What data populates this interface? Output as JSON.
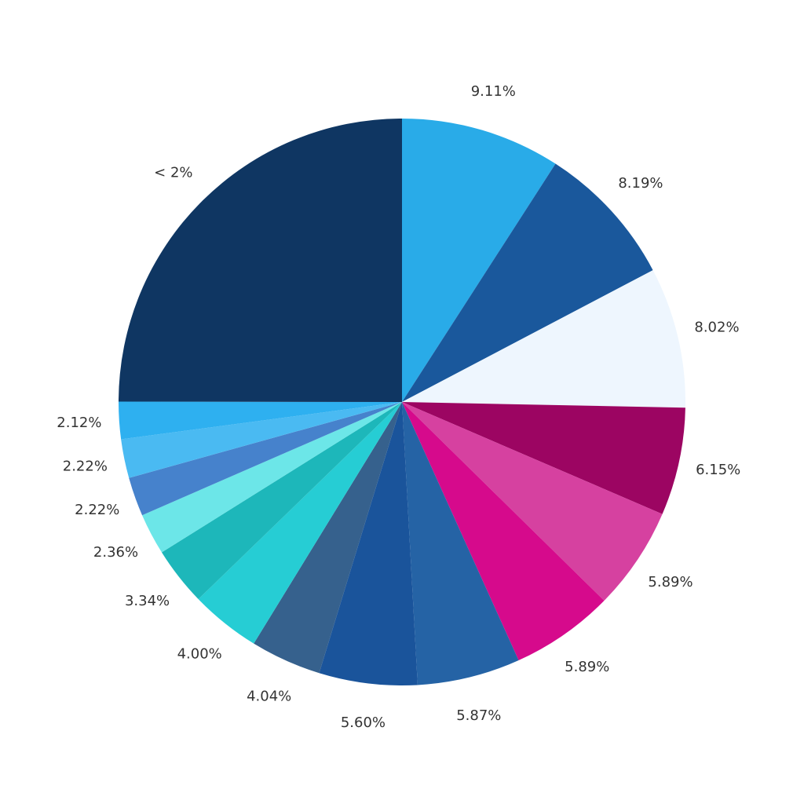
{
  "chart_data": {
    "type": "pie",
    "categories": [
      null,
      null,
      null,
      null,
      null,
      null,
      null,
      null,
      null,
      null,
      null,
      null,
      null,
      null,
      null,
      "< 2%"
    ],
    "values": [
      9.11,
      8.19,
      8.02,
      6.15,
      5.89,
      5.89,
      5.87,
      5.6,
      4.04,
      4.0,
      3.34,
      2.36,
      2.22,
      2.22,
      2.12,
      24.98
    ],
    "value_labels": [
      "9.11%",
      "8.19%",
      "8.02%",
      "6.15%",
      "5.89%",
      "5.89%",
      "5.87%",
      "5.60%",
      "4.04%",
      "4.00%",
      "3.34%",
      "2.36%",
      "2.22%",
      "2.22%",
      "2.12%",
      null
    ],
    "colors": [
      "#29abe8",
      "#1a589c",
      "#eef6fe",
      "#9c0562",
      "#d641a0",
      "#d60a8c",
      "#2563a5",
      "#1a549b",
      "#36618d",
      "#26cdd4",
      "#1db7ba",
      "#6ce6e8",
      "#4682cc",
      "#4abaf2",
      "#2eb0f0",
      "#0f3662"
    ]
  }
}
